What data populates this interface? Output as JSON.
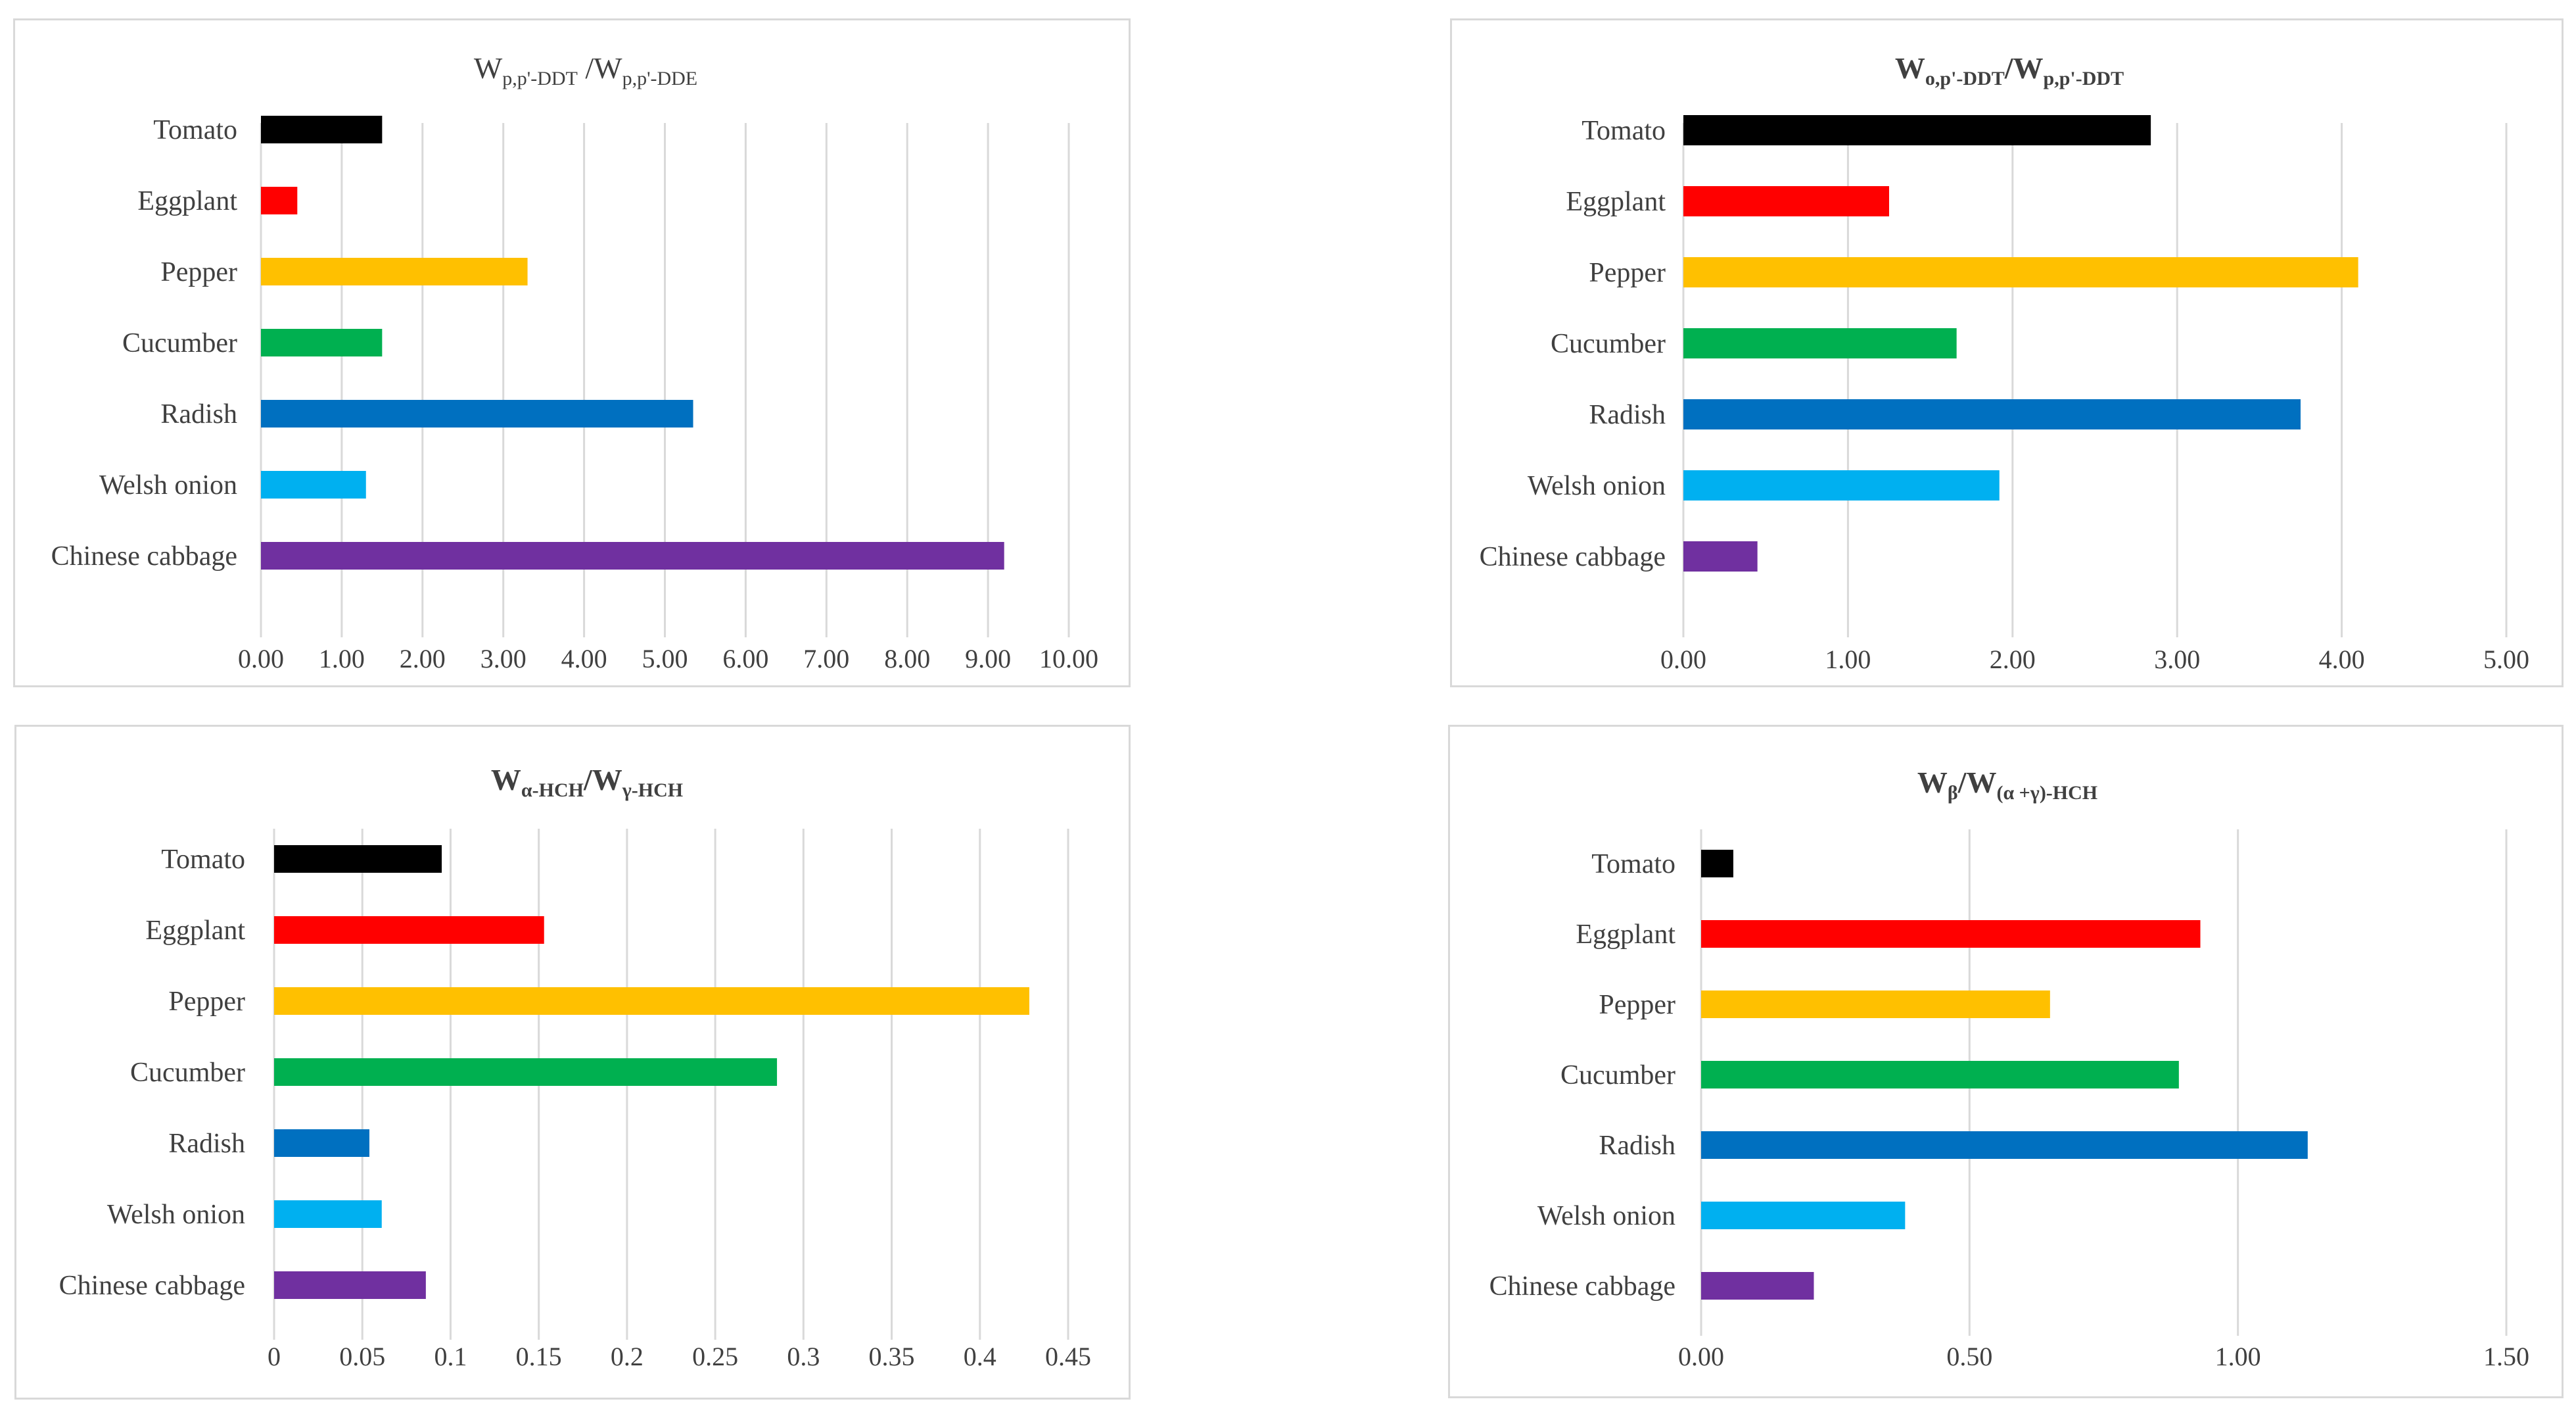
{
  "colors": {
    "Tomato": "#000000",
    "Eggplant": "#ff0000",
    "Pepper": "#ffc000",
    "Cucumber": "#00b050",
    "Radish": "#0070c0",
    "Welsh onion": "#00b0f0",
    "Chinese cabbage": "#7030a0",
    "grid": "#d9d9d9",
    "text": "#404040"
  },
  "chart_data": [
    {
      "type": "bar",
      "orientation": "horizontal",
      "title": {
        "main": "W",
        "sub1": "p,p'-DDT",
        "sep": " /W",
        "sub2": "p,p'-DDE",
        "bold": false
      },
      "categories": [
        "Tomato",
        "Eggplant",
        "Pepper",
        "Cucumber",
        "Radish",
        "Welsh onion",
        "Chinese cabbage"
      ],
      "values": [
        1.5,
        0.45,
        3.3,
        1.5,
        5.35,
        1.3,
        9.2
      ],
      "xlim": [
        0,
        10
      ],
      "ticks": [
        "0.00",
        "1.00",
        "2.00",
        "3.00",
        "4.00",
        "5.00",
        "6.00",
        "7.00",
        "8.00",
        "9.00",
        "10.00"
      ],
      "grid": true,
      "legend": "none",
      "xlabel": "",
      "ylabel": ""
    },
    {
      "type": "bar",
      "orientation": "horizontal",
      "title": {
        "main": "W",
        "sub1": "o,p'-DDT",
        "sep": "/W",
        "sub2": "p,p'-DDT",
        "bold": true
      },
      "categories": [
        "Tomato",
        "Eggplant",
        "Pepper",
        "Cucumber",
        "Radish",
        "Welsh onion",
        "Chinese cabbage"
      ],
      "values": [
        2.84,
        1.25,
        4.1,
        1.66,
        3.75,
        1.92,
        0.45
      ],
      "xlim": [
        0,
        5
      ],
      "ticks": [
        "0.00",
        "1.00",
        "2.00",
        "3.00",
        "4.00",
        "5.00"
      ],
      "grid": true,
      "legend": "none",
      "xlabel": "",
      "ylabel": ""
    },
    {
      "type": "bar",
      "orientation": "horizontal",
      "title": {
        "main": "W",
        "sub1": "α-HCH",
        "sep": "/W",
        "sub2": "γ-HCH",
        "bold": true
      },
      "categories": [
        "Tomato",
        "Eggplant",
        "Pepper",
        "Cucumber",
        "Radish",
        "Welsh onion",
        "Chinese cabbage"
      ],
      "values": [
        0.095,
        0.153,
        0.428,
        0.285,
        0.054,
        0.061,
        0.086
      ],
      "xlim": [
        0,
        0.45
      ],
      "ticks": [
        "0",
        "0.05",
        "0.1",
        "0.15",
        "0.2",
        "0.25",
        "0.3",
        "0.35",
        "0.4",
        "0.45"
      ],
      "grid": true,
      "legend": "none",
      "xlabel": "",
      "ylabel": ""
    },
    {
      "type": "bar",
      "orientation": "horizontal",
      "title": {
        "main": "W",
        "sub1": "β",
        "sep": "/W",
        "sub2": "(α +γ)-HCH",
        "bold": true
      },
      "categories": [
        "Tomato",
        "Eggplant",
        "Pepper",
        "Cucumber",
        "Radish",
        "Welsh onion",
        "Chinese cabbage"
      ],
      "values": [
        0.06,
        0.93,
        0.65,
        0.89,
        1.13,
        0.38,
        0.21
      ],
      "xlim": [
        0,
        1.5
      ],
      "ticks": [
        "0.00",
        "0.50",
        "1.00",
        "1.50"
      ],
      "grid": true,
      "legend": "none",
      "xlabel": "",
      "ylabel": ""
    }
  ]
}
